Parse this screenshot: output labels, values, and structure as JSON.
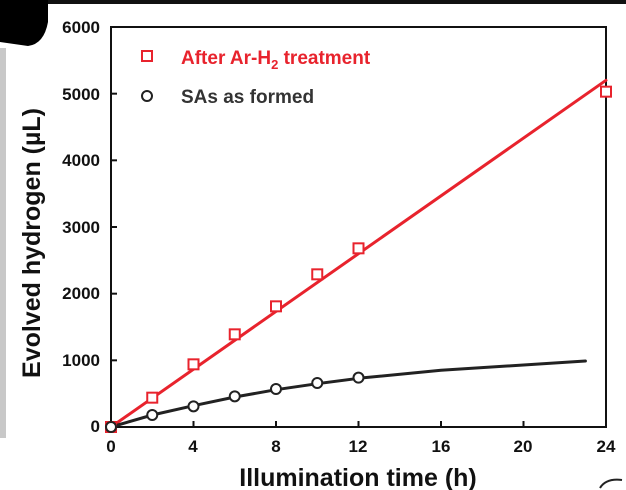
{
  "chart_data": {
    "type": "scatter",
    "title": "",
    "xlabel": "Illumination time (h)",
    "ylabel": "Evolved hydrogen (µL)",
    "xlim": [
      0,
      24
    ],
    "ylim": [
      0,
      6000
    ],
    "xticks": [
      "0",
      "4",
      "8",
      "12",
      "16",
      "20",
      "24"
    ],
    "yticks": [
      "0",
      "1000",
      "2000",
      "3000",
      "4000",
      "5000",
      "6000"
    ],
    "legend_position": "top-left",
    "series": [
      {
        "name": "After Ar-H",
        "name_subscript": "2",
        "name_suffix": " treatment",
        "marker": "square",
        "color": "#e8232d",
        "x": [
          0,
          2,
          4,
          6,
          8,
          10,
          12,
          24
        ],
        "values": [
          0,
          440,
          940,
          1390,
          1810,
          2290,
          2680,
          5030
        ],
        "fit": "linear",
        "fit_points": [
          [
            0,
            0
          ],
          [
            24,
            5200
          ]
        ]
      },
      {
        "name": "SAs as formed",
        "marker": "circle",
        "color": "#222222",
        "x": [
          0,
          2,
          4,
          6,
          8,
          10,
          12
        ],
        "values": [
          0,
          180,
          310,
          460,
          570,
          660,
          740
        ],
        "fit": "curve",
        "fit_points": [
          [
            0,
            0
          ],
          [
            2,
            180
          ],
          [
            4,
            320
          ],
          [
            6,
            450
          ],
          [
            8,
            560
          ],
          [
            10,
            650
          ],
          [
            12,
            730
          ],
          [
            16,
            850
          ],
          [
            20,
            930
          ],
          [
            23,
            990
          ]
        ]
      }
    ]
  }
}
